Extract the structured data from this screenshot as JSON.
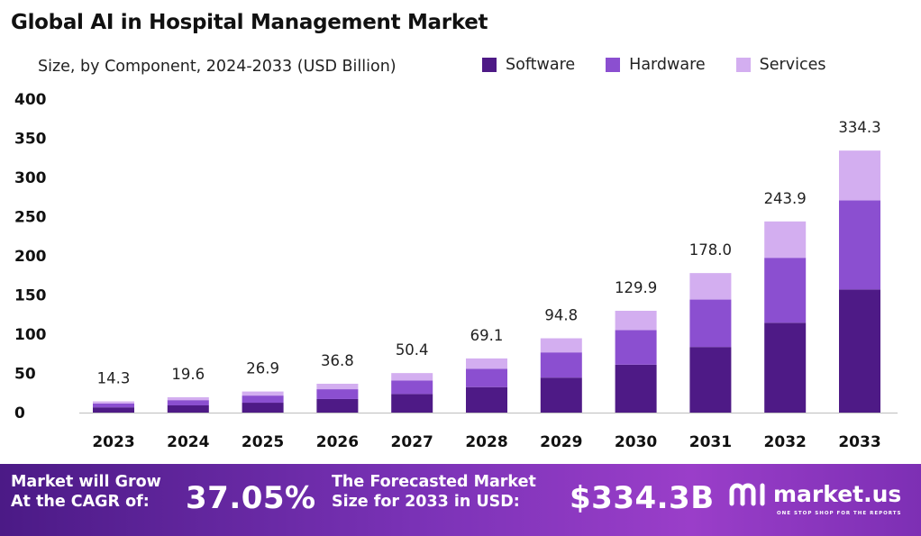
{
  "title": "Global AI in Hospital Management Market",
  "subtitle": "Size, by Component, 2024-2033 (USD Billion)",
  "legend": [
    {
      "label": "Software",
      "color": "#4e1a86"
    },
    {
      "label": "Hardware",
      "color": "#8b4fd0"
    },
    {
      "label": "Services",
      "color": "#d3aef0"
    }
  ],
  "chart_data": {
    "type": "bar",
    "stacked": true,
    "categories": [
      "2023",
      "2024",
      "2025",
      "2026",
      "2027",
      "2028",
      "2029",
      "2030",
      "2031",
      "2032",
      "2033"
    ],
    "series": [
      {
        "name": "Software",
        "values": [
          6.7,
          9.2,
          12.6,
          17.3,
          23.7,
          32.5,
          44.6,
          61.1,
          83.7,
          114.6,
          157.1
        ]
      },
      {
        "name": "Hardware",
        "values": [
          4.9,
          6.7,
          9.1,
          12.5,
          17.1,
          23.5,
          32.2,
          44.2,
          60.5,
          82.9,
          113.7
        ]
      },
      {
        "name": "Services",
        "values": [
          2.7,
          3.7,
          5.2,
          7.0,
          9.6,
          13.1,
          18.0,
          24.6,
          33.8,
          46.4,
          63.5
        ]
      }
    ],
    "totals": [
      "14.3",
      "19.6",
      "26.9",
      "36.8",
      "50.4",
      "69.1",
      "94.8",
      "129.9",
      "178.0",
      "243.9",
      "334.3"
    ],
    "yticks": [
      "0",
      "50",
      "100",
      "150",
      "200",
      "250",
      "300",
      "350",
      "400"
    ],
    "ylim": [
      0,
      400
    ],
    "grid": false,
    "legend_position": "top-right"
  },
  "banner": {
    "cagr_line1": "Market will Grow",
    "cagr_line2": "At the CAGR of:",
    "cagr_value": "37.05%",
    "forecast_line1": "The Forecasted Market",
    "forecast_line2": "Size for 2033 in USD:",
    "forecast_value": "$334.3B",
    "logo_text": "market.us",
    "logo_tagline": "ONE STOP SHOP FOR THE REPORTS"
  }
}
